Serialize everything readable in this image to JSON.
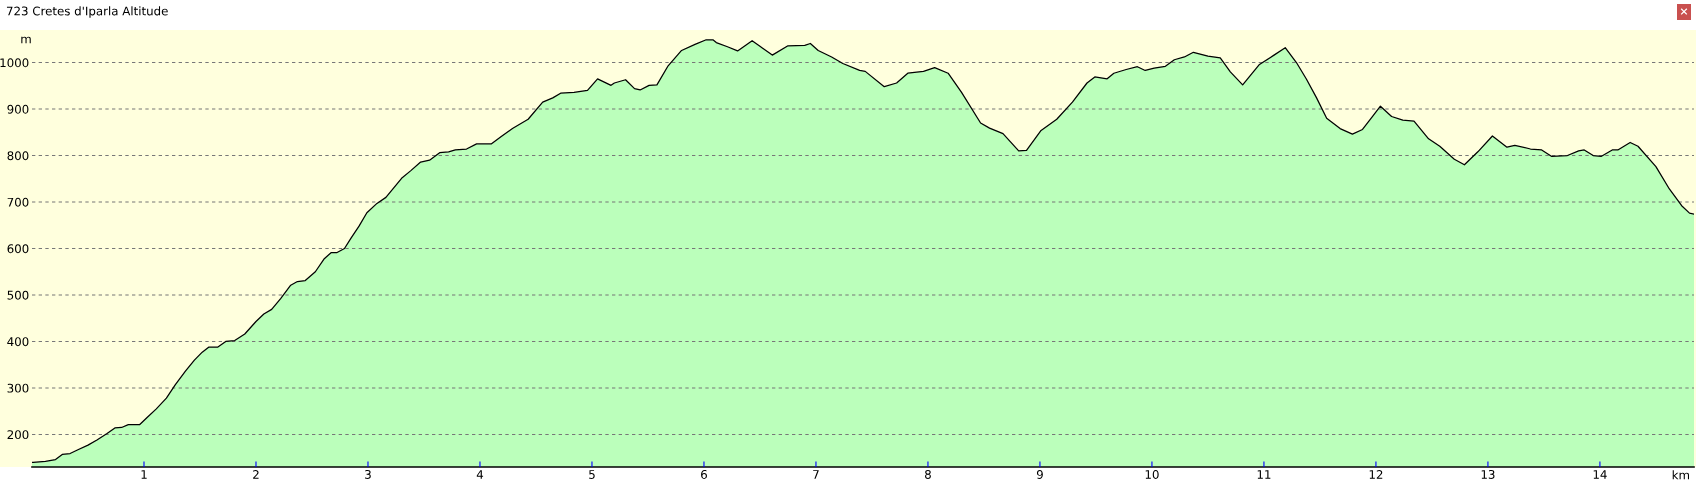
{
  "chart_data": {
    "type": "area",
    "title": "723 Cretes d'Iparla Altitude",
    "xlabel": "km",
    "ylabel": "m",
    "annotations": [
      "×"
    ],
    "xlim": [
      0,
      14.84
    ],
    "ylim": [
      130,
      1070
    ],
    "xticks": [
      1,
      2,
      3,
      4,
      5,
      6,
      7,
      8,
      9,
      10,
      11,
      12,
      13,
      14
    ],
    "yticks": [
      200,
      300,
      400,
      500,
      600,
      700,
      800,
      900,
      1000
    ],
    "grid": "y",
    "legend": false,
    "series": [
      {
        "color": "#bbffbb",
        "x": [
          0,
          0.01,
          0.12,
          0.21,
          0.27,
          0.34,
          0.41,
          0.5,
          0.58,
          0.67,
          0.74,
          0.8,
          0.86,
          0.96,
          1.03,
          1.11,
          1.2,
          1.28,
          1.37,
          1.45,
          1.52,
          1.58,
          1.66,
          1.73,
          1.81,
          1.9,
          2.0,
          2.07,
          2.14,
          2.22,
          2.31,
          2.37,
          2.44,
          2.53,
          2.61,
          2.67,
          2.72,
          2.79,
          2.85,
          2.92,
          2.99,
          3.08,
          3.16,
          3.3,
          3.38,
          3.47,
          3.55,
          3.64,
          3.72,
          3.78,
          3.88,
          3.97,
          4.03,
          4.1,
          4.19,
          4.29,
          4.43,
          4.56,
          4.65,
          4.72,
          4.84,
          4.96,
          5.05,
          5.17,
          5.2,
          5.3,
          5.38,
          5.43,
          5.51,
          5.58,
          5.68,
          5.8,
          5.92,
          6.02,
          6.08,
          6.11,
          6.21,
          6.3,
          6.43,
          6.5,
          6.61,
          6.75,
          6.9,
          6.95,
          7.02,
          7.14,
          7.24,
          7.39,
          7.44,
          7.61,
          7.72,
          7.82,
          7.96,
          8.06,
          8.18,
          8.3,
          8.47,
          8.55,
          8.67,
          8.81,
          8.88,
          9.01,
          9.15,
          9.29,
          9.42,
          9.49,
          9.6,
          9.66,
          9.77,
          9.87,
          9.94,
          10.02,
          10.12,
          10.2,
          10.29,
          10.37,
          10.5,
          10.61,
          10.7,
          10.81,
          10.96,
          11.09,
          11.19,
          11.29,
          11.38,
          11.47,
          11.56,
          11.68,
          11.79,
          11.88,
          11.97,
          12.04,
          12.14,
          12.24,
          12.34,
          12.47,
          12.57,
          12.7,
          12.79,
          12.91,
          13.04,
          13.17,
          13.24,
          13.38,
          13.48,
          13.57,
          13.71,
          13.81,
          13.86,
          13.94,
          14.01,
          14.11,
          14.16,
          14.27,
          14.34,
          14.5,
          14.62,
          14.73,
          14.8,
          14.84
        ],
        "values": [
          140,
          140,
          142,
          146,
          157,
          159,
          167,
          177,
          188,
          202,
          214,
          215,
          221,
          221,
          237,
          255,
          278,
          307,
          336,
          360,
          377,
          388,
          388,
          400,
          402,
          416,
          443,
          459,
          469,
          492,
          521,
          529,
          531,
          550,
          578,
          591,
          591,
          600,
          623,
          648,
          677,
          697,
          710,
          751,
          767,
          786,
          790,
          806,
          808,
          812,
          814,
          825,
          825,
          825,
          841,
          858,
          878,
          915,
          924,
          934,
          936,
          940,
          965,
          951,
          956,
          963,
          944,
          941,
          951,
          952,
          993,
          1026,
          1039,
          1049,
          1049,
          1043,
          1034,
          1025,
          1047,
          1035,
          1016,
          1036,
          1037,
          1041,
          1026,
          1012,
          998,
          983,
          981,
          948,
          956,
          977,
          981,
          989,
          977,
          936,
          870,
          859,
          847,
          810,
          811,
          854,
          878,
          915,
          956,
          969,
          965,
          977,
          985,
          991,
          983,
          988,
          992,
          1006,
          1012,
          1022,
          1014,
          1010,
          980,
          952,
          996,
          1016,
          1032,
          1000,
          964,
          924,
          880,
          858,
          846,
          856,
          884,
          906,
          884,
          876,
          874,
          836,
          820,
          792,
          780,
          808,
          842,
          818,
          822,
          814,
          812,
          798,
          800,
          810,
          812,
          800,
          798,
          812,
          812,
          828,
          820,
          776,
          728,
          692,
          676,
          674
        ]
      }
    ]
  }
}
